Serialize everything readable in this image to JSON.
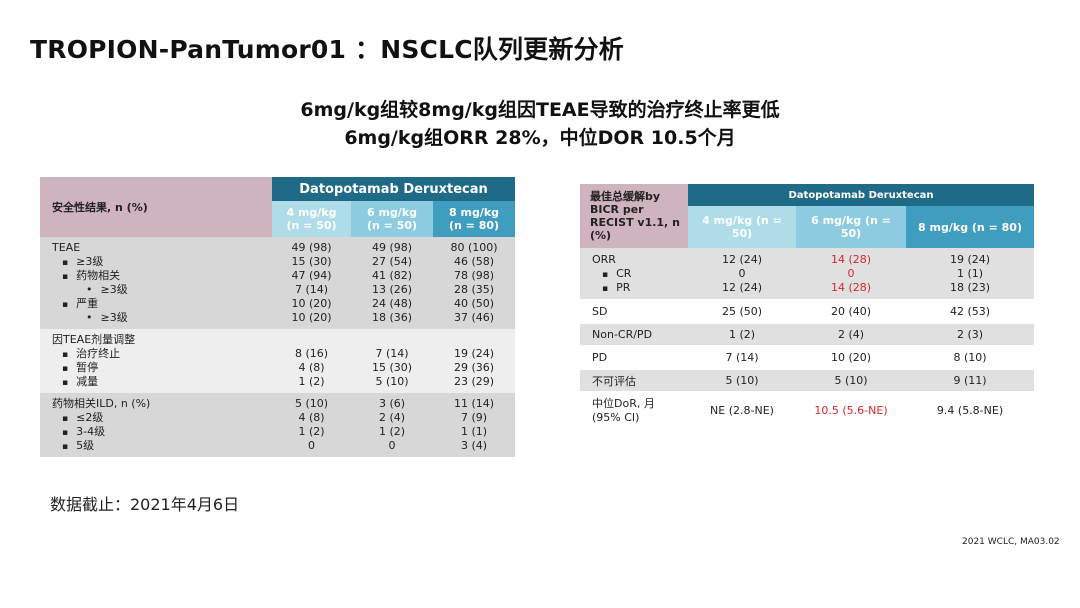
{
  "slide": {
    "title": "TROPION-PanTumor01 ：NSCLC队列更新分析",
    "subtitle_line1": "6mg/kg组较8mg/kg组因TEAE导致的治疗终止率更低",
    "subtitle_line2": "6mg/kg组ORR 28%，中位DOR 10.5个月",
    "data_cutoff": "数据截止：2021年4月6日",
    "source": "2021 WCLC, MA03.02"
  },
  "left_table": {
    "corner_label": "安全性结果, n (%)",
    "drug_header": "Datopotamab Deruxtecan",
    "col_headers": [
      {
        "dose": "4 mg/kg",
        "n": "(n = 50)"
      },
      {
        "dose": "6 mg/kg",
        "n": "(n = 50)"
      },
      {
        "dose": "8 mg/kg",
        "n": "(n = 80)"
      }
    ],
    "groups": [
      {
        "rows": [
          {
            "label": "TEAE",
            "values": [
              "49 (98)",
              "49 (98)",
              "80 (100)"
            ]
          },
          {
            "label": "≥3级",
            "values": [
              "15 (30)",
              "27 (54)",
              "46 (58)"
            ]
          },
          {
            "label": "药物相关",
            "values": [
              "47 (94)",
              "41 (82)",
              "78 (98)"
            ]
          },
          {
            "label": "≥3级",
            "values": [
              "7 (14)",
              "13 (26)",
              "28 (35)"
            ]
          },
          {
            "label": "严重",
            "values": [
              "10 (20)",
              "24 (48)",
              "40 (50)"
            ]
          },
          {
            "label": "≥3级",
            "values": [
              "10 (20)",
              "18 (36)",
              "37 (46)"
            ]
          }
        ]
      },
      {
        "rows": [
          {
            "label": "因TEAE剂量调整",
            "values": [
              "",
              "",
              ""
            ]
          },
          {
            "label": "治疗终止",
            "values": [
              "8 (16)",
              "7 (14)",
              "19 (24)"
            ]
          },
          {
            "label": "暂停",
            "values": [
              "4 (8)",
              "15 (30)",
              "29 (36)"
            ]
          },
          {
            "label": "减量",
            "values": [
              "1 (2)",
              "5 (10)",
              "23 (29)"
            ]
          }
        ]
      },
      {
        "rows": [
          {
            "label": "药物相关ILD, n (%)",
            "values": [
              "5 (10)",
              "3 (6)",
              "11 (14)"
            ]
          },
          {
            "label": "≤2级",
            "values": [
              "4 (8)",
              "2 (4)",
              "7 (9)"
            ]
          },
          {
            "label": "3-4级",
            "values": [
              "1 (2)",
              "1 (2)",
              "1 (1)"
            ]
          },
          {
            "label": "5级",
            "values": [
              "0",
              "0",
              "3 (4)"
            ]
          }
        ]
      }
    ]
  },
  "right_table": {
    "corner_label_1": "最佳总缓解by",
    "corner_label_2": "BICR per",
    "corner_label_3": "RECIST v1.1, n",
    "corner_label_4": "(%)",
    "drug_header": "Datopotamab Deruxtecan",
    "col_headers": [
      {
        "dose": "4 mg/kg (n =",
        "n": "50)"
      },
      {
        "dose": "6 mg/kg (n =",
        "n": "50)"
      },
      {
        "dose": "8 mg/kg (n = 80)",
        "n": ""
      }
    ],
    "orr": {
      "rows": [
        {
          "label": "ORR",
          "values": [
            "12 (24)",
            "14 (28)",
            "19 (24)"
          ]
        },
        {
          "label": "CR",
          "values": [
            "0",
            "0",
            "1 (1)"
          ]
        },
        {
          "label": "PR",
          "values": [
            "12 (24)",
            "14 (28)",
            "18 (23)"
          ]
        }
      ]
    },
    "rows": [
      {
        "label": "SD",
        "values": [
          "25 (50)",
          "20 (40)",
          "42 (53)"
        ]
      },
      {
        "label": "Non-CR/PD",
        "values": [
          "1 (2)",
          "2 (4)",
          "2 (3)"
        ]
      },
      {
        "label": "PD",
        "values": [
          "7 (14)",
          "10 (20)",
          "8 (10)"
        ]
      },
      {
        "label": "不可评估",
        "values": [
          "5 (10)",
          "5 (10)",
          "9 (11)"
        ]
      }
    ],
    "dor": {
      "label_1": "中位DoR, 月",
      "label_2": "(95% CI)",
      "values": [
        "NE (2.8-NE)",
        "10.5 (5.6-NE)",
        "9.4 (5.8-NE)"
      ]
    }
  },
  "colors": {
    "header_dark": "#1f6a86",
    "highlight_red": "#d3292c",
    "corner_pink": "#cfb4c0"
  }
}
